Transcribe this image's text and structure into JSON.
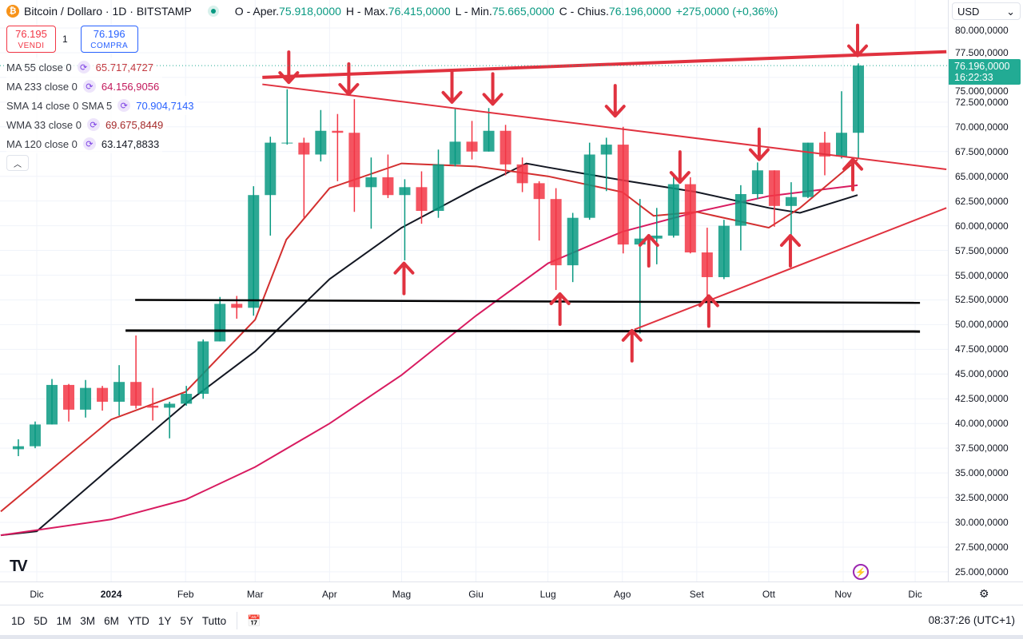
{
  "header": {
    "symbol": "Bitcoin / Dollaro · 1D · BITSTAMP",
    "logo_letter": "₿",
    "open_label": "O - Aper.",
    "open": "75.918,0000",
    "high_label": "H - Max.",
    "high": "76.415,0000",
    "low_label": "L - Min.",
    "low": "75.665,0000",
    "close_label": "C - Chius.",
    "close": "76.196,0000",
    "change": "+275,0000 (+0,36%)"
  },
  "trade": {
    "sell_price": "76.195",
    "sell_label": "VENDI",
    "quantity": "1",
    "buy_price": "76.196",
    "buy_label": "COMPRA"
  },
  "legend": [
    {
      "name": "MA 55 close 0",
      "value": "65.717,4727",
      "color": "#c2383f"
    },
    {
      "name": "MA 233 close 0",
      "value": "64.156,9056",
      "color": "#c2185b"
    },
    {
      "name": "SMA 14 close 0 SMA 5",
      "value": "70.904,7143",
      "color": "#2962ff"
    },
    {
      "name": "WMA 33 close 0",
      "value": "69.675,8449",
      "color": "#a52a2a"
    },
    {
      "name": "MA 120 close 0",
      "value": "63.147,8833",
      "color": "#131722"
    }
  ],
  "price_axis": {
    "currency": "USD",
    "ticks": [
      "80.000,0000",
      "77.500,0000",
      "75.000,0000",
      "72.500,0000",
      "70.000,0000",
      "67.500,0000",
      "65.000,0000",
      "62.500,0000",
      "60.000,0000",
      "57.500,0000",
      "55.000,0000",
      "52.500,0000",
      "50.000,0000",
      "47.500,0000",
      "45.000,0000",
      "42.500,0000",
      "40.000,0000",
      "37.500,0000",
      "35.000,0000",
      "32.500,0000",
      "30.000,0000",
      "27.500,0000",
      "25.000,0000"
    ],
    "last_price": "76.196,0000",
    "countdown": "16:22:33"
  },
  "time_axis": [
    {
      "label": "Dic",
      "date": "2023-12-01"
    },
    {
      "label": "2024",
      "date": "2024-01-01",
      "bold": true
    },
    {
      "label": "Feb",
      "date": "2024-02-01"
    },
    {
      "label": "Mar",
      "date": "2024-03-01"
    },
    {
      "label": "Apr",
      "date": "2024-04-01"
    },
    {
      "label": "Mag",
      "date": "2024-05-01"
    },
    {
      "label": "Giu",
      "date": "2024-06-01"
    },
    {
      "label": "Lug",
      "date": "2024-07-01"
    },
    {
      "label": "Ago",
      "date": "2024-08-01"
    },
    {
      "label": "Set",
      "date": "2024-09-01"
    },
    {
      "label": "Ott",
      "date": "2024-10-01"
    },
    {
      "label": "Nov",
      "date": "2024-11-01"
    },
    {
      "label": "Dic",
      "date": "2024-12-01"
    }
  ],
  "toolbar": {
    "ranges": [
      "1D",
      "5D",
      "1M",
      "3M",
      "6M",
      "YTD",
      "1Y",
      "5Y",
      "Tutto"
    ],
    "clock": "08:37:26 (UTC+1)"
  },
  "colors": {
    "up": "#089981",
    "down": "#f23645",
    "annotation": "#e0323f",
    "last_price": "#22ab94"
  },
  "chart_data": {
    "type": "candlestick",
    "interval_note": "approximated weekly from daily chart",
    "ylim": [
      25000,
      80000
    ],
    "grid": true,
    "candles": [
      [
        "2023-11-20",
        37400,
        38400,
        36700,
        37700
      ],
      [
        "2023-11-27",
        37700,
        40200,
        37500,
        39900
      ],
      [
        "2023-12-04",
        39900,
        44500,
        39900,
        43900
      ],
      [
        "2023-12-11",
        43900,
        44000,
        40200,
        41400
      ],
      [
        "2023-12-18",
        41400,
        44400,
        40600,
        43600
      ],
      [
        "2023-12-25",
        43600,
        43800,
        41300,
        42200
      ],
      [
        "2024-01-01",
        42200,
        45900,
        40800,
        44200
      ],
      [
        "2024-01-08",
        44200,
        48900,
        41500,
        41800
      ],
      [
        "2024-01-15",
        41800,
        43600,
        40300,
        41600
      ],
      [
        "2024-01-22",
        41600,
        42200,
        38500,
        42000
      ],
      [
        "2024-01-29",
        42000,
        43800,
        41800,
        43000
      ],
      [
        "2024-02-05",
        43000,
        48500,
        42500,
        48300
      ],
      [
        "2024-02-12",
        48300,
        52800,
        48300,
        52100
      ],
      [
        "2024-02-19",
        52100,
        52900,
        50600,
        51700
      ],
      [
        "2024-02-26",
        51700,
        64000,
        50900,
        63100
      ],
      [
        "2024-03-04",
        63100,
        69000,
        59000,
        68400
      ],
      [
        "2024-03-11",
        68400,
        73800,
        68200,
        68400
      ],
      [
        "2024-03-18",
        68400,
        68900,
        60800,
        67200
      ],
      [
        "2024-03-25",
        67200,
        71700,
        66500,
        69600
      ],
      [
        "2024-04-01",
        69600,
        71300,
        64500,
        69400
      ],
      [
        "2024-04-08",
        69400,
        72800,
        61400,
        63900
      ],
      [
        "2024-04-15",
        63900,
        66900,
        59700,
        64900
      ],
      [
        "2024-04-22",
        64900,
        67200,
        62800,
        63100
      ],
      [
        "2024-04-29",
        63100,
        64700,
        56500,
        63900
      ],
      [
        "2024-05-06",
        63900,
        65500,
        60200,
        61500
      ],
      [
        "2024-05-13",
        61500,
        67700,
        60800,
        66200
      ],
      [
        "2024-05-20",
        66200,
        71900,
        66000,
        68500
      ],
      [
        "2024-05-27",
        68500,
        70600,
        66700,
        67500
      ],
      [
        "2024-06-03",
        67500,
        71900,
        67500,
        69600
      ],
      [
        "2024-06-10",
        69600,
        70200,
        65100,
        66200
      ],
      [
        "2024-06-17",
        66200,
        66900,
        63400,
        64300
      ],
      [
        "2024-06-24",
        64300,
        64500,
        58500,
        62700
      ],
      [
        "2024-07-01",
        62700,
        63800,
        53500,
        56000
      ],
      [
        "2024-07-08",
        56000,
        61300,
        54300,
        60800
      ],
      [
        "2024-07-15",
        60800,
        68400,
        60600,
        67200
      ],
      [
        "2024-07-22",
        67200,
        68900,
        63500,
        68200
      ],
      [
        "2024-07-29",
        68200,
        70000,
        57200,
        58100
      ],
      [
        "2024-08-05",
        58100,
        62700,
        49100,
        58700
      ],
      [
        "2024-08-12",
        58700,
        61800,
        56100,
        59000
      ],
      [
        "2024-08-19",
        59000,
        65000,
        58800,
        64200
      ],
      [
        "2024-08-26",
        64200,
        64900,
        57200,
        57300
      ],
      [
        "2024-09-02",
        57300,
        59800,
        52600,
        54800
      ],
      [
        "2024-09-09",
        54800,
        60600,
        54600,
        60000
      ],
      [
        "2024-09-16",
        60000,
        64100,
        57500,
        63200
      ],
      [
        "2024-09-23",
        63200,
        66400,
        62700,
        65600
      ],
      [
        "2024-09-30",
        65600,
        65600,
        59900,
        62000
      ],
      [
        "2024-10-07",
        62000,
        64400,
        58900,
        62900
      ],
      [
        "2024-10-14",
        62900,
        68400,
        62800,
        68400
      ],
      [
        "2024-10-21",
        68400,
        69500,
        65100,
        67000
      ],
      [
        "2024-10-28",
        67000,
        73600,
        66800,
        69400
      ],
      [
        "2024-11-04",
        69400,
        76415,
        66800,
        76196
      ]
    ],
    "moving_averages": [
      {
        "name": "MA 120",
        "color": "#131722",
        "points": [
          [
            "2023-11-16",
            28700
          ],
          [
            "2023-12-01",
            29100
          ],
          [
            "2024-01-01",
            35600
          ],
          [
            "2024-02-01",
            42000
          ],
          [
            "2024-03-01",
            47300
          ],
          [
            "2024-04-01",
            54600
          ],
          [
            "2024-05-01",
            59800
          ],
          [
            "2024-06-01",
            63800
          ],
          [
            "2024-06-22",
            66300
          ],
          [
            "2024-07-01",
            65900
          ],
          [
            "2024-08-01",
            64600
          ],
          [
            "2024-09-01",
            63400
          ],
          [
            "2024-10-01",
            61800
          ],
          [
            "2024-10-14",
            61300
          ],
          [
            "2024-11-07",
            63100
          ]
        ]
      },
      {
        "name": "MA 233",
        "color": "#d81b60",
        "points": [
          [
            "2023-11-16",
            28700
          ],
          [
            "2024-01-01",
            30300
          ],
          [
            "2024-02-01",
            32300
          ],
          [
            "2024-03-01",
            35600
          ],
          [
            "2024-04-01",
            40000
          ],
          [
            "2024-05-01",
            44900
          ],
          [
            "2024-06-01",
            50900
          ],
          [
            "2024-07-01",
            56200
          ],
          [
            "2024-08-01",
            59400
          ],
          [
            "2024-09-01",
            61400
          ],
          [
            "2024-10-01",
            63000
          ],
          [
            "2024-11-07",
            64100
          ]
        ]
      },
      {
        "name": "MA 55",
        "color": "#d32f2f",
        "points": [
          [
            "2023-11-16",
            31100
          ],
          [
            "2024-01-01",
            40400
          ],
          [
            "2024-02-01",
            43200
          ],
          [
            "2024-03-01",
            50500
          ],
          [
            "2024-03-14",
            58600
          ],
          [
            "2024-04-01",
            63800
          ],
          [
            "2024-05-01",
            66300
          ],
          [
            "2024-06-01",
            66000
          ],
          [
            "2024-07-01",
            65000
          ],
          [
            "2024-08-01",
            63400
          ],
          [
            "2024-08-14",
            61000
          ],
          [
            "2024-09-01",
            61400
          ],
          [
            "2024-10-01",
            59800
          ],
          [
            "2024-10-14",
            61800
          ],
          [
            "2024-11-07",
            66700
          ]
        ]
      }
    ],
    "trendlines": [
      {
        "color": "#e0323f",
        "width": 4,
        "from": [
          "2024-03-04",
          75000
        ],
        "to": [
          "2024-12-14",
          77600
        ]
      },
      {
        "color": "#e0323f",
        "width": 2,
        "from": [
          "2024-03-04",
          74300
        ],
        "to": [
          "2024-12-14",
          65700
        ]
      },
      {
        "color": "#e0323f",
        "width": 2,
        "from": [
          "2024-08-06",
          49500
        ],
        "to": [
          "2024-12-14",
          61800
        ]
      },
      {
        "color": "#000000",
        "width": 2.5,
        "from": [
          "2024-01-11",
          52500
        ],
        "to": [
          "2024-12-03",
          52200
        ]
      },
      {
        "color": "#000000",
        "width": 3,
        "from": [
          "2024-01-07",
          49400
        ],
        "to": [
          "2024-12-03",
          49300
        ]
      }
    ],
    "arrows_down": [
      [
        "2024-03-15",
        74500
      ],
      [
        "2024-04-09",
        73300
      ],
      [
        "2024-05-22",
        72500
      ],
      [
        "2024-06-08",
        72300
      ],
      [
        "2024-07-29",
        71100
      ],
      [
        "2024-08-25",
        64400
      ],
      [
        "2024-09-27",
        66700
      ],
      [
        "2024-11-07",
        77200
      ]
    ],
    "arrows_up": [
      [
        "2024-05-02",
        56200
      ],
      [
        "2024-07-06",
        53100
      ],
      [
        "2024-08-05",
        49400
      ],
      [
        "2024-08-12",
        59000
      ],
      [
        "2024-09-06",
        52900
      ],
      [
        "2024-10-10",
        59000
      ],
      [
        "2024-11-05",
        66700
      ]
    ]
  }
}
